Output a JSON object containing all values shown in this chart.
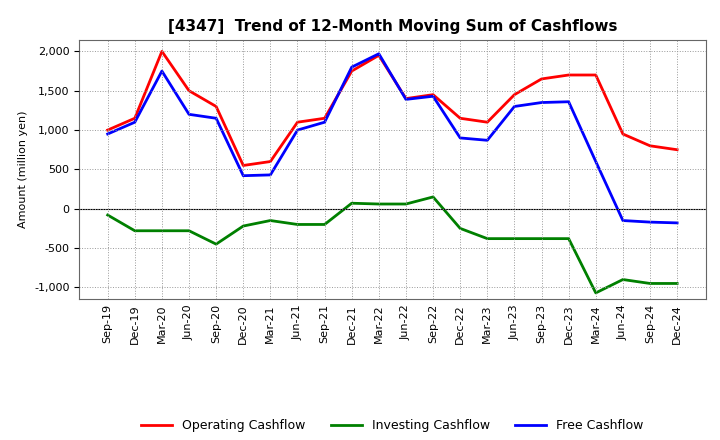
{
  "title": "[4347]  Trend of 12-Month Moving Sum of Cashflows",
  "ylabel": "Amount (million yen)",
  "x_labels": [
    "Sep-19",
    "Dec-19",
    "Mar-20",
    "Jun-20",
    "Sep-20",
    "Dec-20",
    "Mar-21",
    "Jun-21",
    "Sep-21",
    "Dec-21",
    "Mar-22",
    "Jun-22",
    "Sep-22",
    "Dec-22",
    "Mar-23",
    "Jun-23",
    "Sep-23",
    "Dec-23",
    "Mar-24",
    "Jun-24",
    "Sep-24",
    "Dec-24"
  ],
  "operating": [
    1000,
    1150,
    2000,
    1500,
    1300,
    550,
    600,
    1100,
    1150,
    1750,
    1950,
    1400,
    1450,
    1150,
    1100,
    1450,
    1650,
    1700,
    1700,
    950,
    800,
    750
  ],
  "investing": [
    -80,
    -280,
    -280,
    -280,
    -450,
    -220,
    -150,
    -200,
    -200,
    70,
    60,
    60,
    150,
    -250,
    -380,
    -380,
    -380,
    -380,
    -1070,
    -900,
    -950,
    -950
  ],
  "free": [
    950,
    1100,
    1750,
    1200,
    1150,
    420,
    430,
    1000,
    1100,
    1800,
    1970,
    1390,
    1430,
    900,
    870,
    1300,
    1350,
    1360,
    600,
    -150,
    -170,
    -180
  ],
  "operating_color": "#FF0000",
  "investing_color": "#008000",
  "free_color": "#0000FF",
  "ylim": [
    -1150,
    2150
  ],
  "yticks": [
    -1000,
    -500,
    0,
    500,
    1000,
    1500,
    2000
  ],
  "background_color": "#FFFFFF",
  "grid_color": "#999999",
  "linewidth": 2.0,
  "title_fontsize": 11,
  "label_fontsize": 8,
  "tick_fontsize": 8,
  "legend_fontsize": 9
}
